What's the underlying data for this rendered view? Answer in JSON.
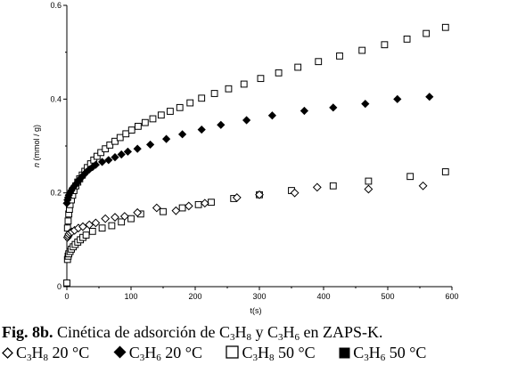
{
  "chart_data": {
    "type": "scatter",
    "xlabel": "t(s)",
    "ylabel_italic": "n",
    "ylabel_rest": " (mmol / g)",
    "xlim": [
      0,
      600
    ],
    "ylim": [
      0,
      0.6
    ],
    "x_ticks": [
      0,
      100,
      200,
      300,
      400,
      500,
      600
    ],
    "y_ticks": [
      0,
      0.2,
      0.4,
      0.6
    ],
    "y_tick_labels": [
      "0",
      "0.2",
      "0.4",
      "0.6"
    ],
    "grid": false,
    "series": [
      {
        "key": "c3h8_20",
        "marker": "diamond-open",
        "x": [
          1,
          2,
          3,
          5,
          8,
          12,
          18,
          25,
          35,
          45,
          60,
          75,
          90,
          110,
          140,
          170,
          190,
          215,
          265,
          300,
          355,
          390,
          470,
          555
        ],
        "y": [
          0.105,
          0.108,
          0.112,
          0.115,
          0.117,
          0.12,
          0.125,
          0.128,
          0.132,
          0.136,
          0.145,
          0.148,
          0.15,
          0.158,
          0.168,
          0.162,
          0.172,
          0.178,
          0.19,
          0.196,
          0.2,
          0.212,
          0.208,
          0.215
        ]
      },
      {
        "key": "c3h6_20",
        "marker": "diamond-filled",
        "x": [
          0,
          1,
          2,
          3,
          5,
          7,
          9,
          12,
          15,
          18,
          22,
          26,
          30,
          35,
          40,
          45,
          55,
          65,
          75,
          85,
          95,
          110,
          130,
          155,
          180,
          210,
          240,
          280,
          320,
          370,
          415,
          465,
          515,
          565
        ],
        "y": [
          0.178,
          0.185,
          0.19,
          0.195,
          0.2,
          0.205,
          0.21,
          0.215,
          0.22,
          0.226,
          0.232,
          0.238,
          0.244,
          0.25,
          0.255,
          0.26,
          0.266,
          0.27,
          0.276,
          0.282,
          0.288,
          0.294,
          0.303,
          0.315,
          0.325,
          0.335,
          0.345,
          0.355,
          0.365,
          0.375,
          0.382,
          0.39,
          0.4,
          0.405
        ]
      },
      {
        "key": "c3h8_50",
        "marker": "square-open",
        "x": [
          0,
          1,
          2,
          3,
          5,
          7,
          10,
          13,
          17,
          21,
          25,
          30,
          40,
          55,
          70,
          85,
          100,
          115,
          150,
          180,
          205,
          225,
          260,
          300,
          350,
          415,
          470,
          535,
          590
        ],
        "y": [
          0.008,
          0.058,
          0.065,
          0.07,
          0.075,
          0.08,
          0.085,
          0.09,
          0.095,
          0.1,
          0.105,
          0.11,
          0.118,
          0.125,
          0.13,
          0.138,
          0.145,
          0.155,
          0.16,
          0.168,
          0.175,
          0.18,
          0.188,
          0.196,
          0.205,
          0.215,
          0.225,
          0.235,
          0.245
        ]
      },
      {
        "key": "c3h8_50_upper",
        "marker": "square-open",
        "x": [
          1,
          2,
          3,
          4,
          5,
          7,
          9,
          11,
          14,
          17,
          20,
          24,
          28,
          32,
          37,
          42,
          47,
          53,
          60,
          67,
          75,
          83,
          92,
          101,
          111,
          122,
          134,
          147,
          161,
          176,
          192,
          210,
          230,
          252,
          276,
          302,
          330,
          360,
          392,
          425,
          460,
          495,
          530,
          560,
          590
        ],
        "y": [
          0.125,
          0.14,
          0.155,
          0.165,
          0.175,
          0.185,
          0.195,
          0.205,
          0.215,
          0.223,
          0.23,
          0.238,
          0.246,
          0.254,
          0.262,
          0.27,
          0.278,
          0.286,
          0.294,
          0.302,
          0.31,
          0.318,
          0.326,
          0.334,
          0.342,
          0.35,
          0.358,
          0.366,
          0.374,
          0.382,
          0.392,
          0.402,
          0.412,
          0.422,
          0.432,
          0.444,
          0.456,
          0.468,
          0.48,
          0.492,
          0.504,
          0.516,
          0.528,
          0.54,
          0.553
        ]
      }
    ]
  },
  "caption": {
    "fig_label": "Fig. 8b.",
    "text_1": " Cinética de adsorción de C",
    "sub_1": "3",
    "text_2": "H",
    "sub_2": "8",
    "text_3": " y C",
    "sub_3": "3",
    "text_4": "H",
    "sub_4": "6",
    "text_5": " en ZAPS-K."
  },
  "legend": [
    {
      "marker": "diamond-open",
      "pre": "C",
      "s1": "3",
      "mid": "H",
      "s2": "8",
      "post": " 20 °C"
    },
    {
      "marker": "diamond-filled",
      "pre": "C",
      "s1": "3",
      "mid": "H",
      "s2": "6",
      "post": " 20 °C"
    },
    {
      "marker": "square-open",
      "pre": "C",
      "s1": "3",
      "mid": "H",
      "s2": "8",
      "post": " 50 °C"
    },
    {
      "marker": "square-filled",
      "pre": "C",
      "s1": "3",
      "mid": "H",
      "s2": "6",
      "post": " 50 °C"
    }
  ]
}
